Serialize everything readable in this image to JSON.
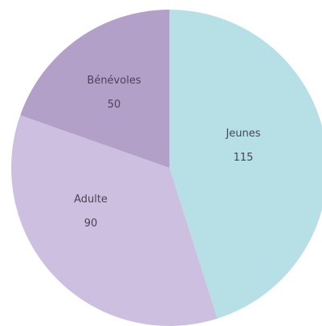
{
  "chart_data": {
    "type": "pie",
    "categories": [
      "Jeunes",
      "Adulte",
      "Bénévoles"
    ],
    "values": [
      115,
      90,
      50
    ],
    "labels": [
      {
        "name": "Jeunes",
        "value": "115"
      },
      {
        "name": "Adulte",
        "value": "90"
      },
      {
        "name": "Bénévoles",
        "value": "50"
      }
    ],
    "colors": [
      "#b7dfe6",
      "#cdbfdf",
      "#b3a0c9"
    ],
    "start_angle_deg": 0,
    "direction": "clockwise",
    "title": "",
    "legend": "none"
  }
}
